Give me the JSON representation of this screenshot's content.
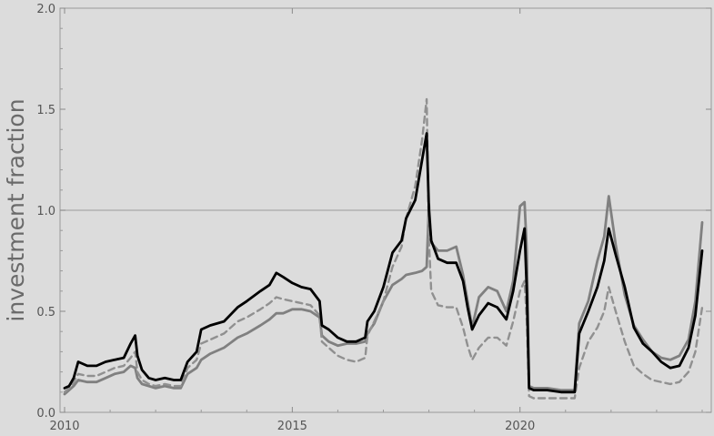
{
  "chart_data": {
    "type": "line",
    "title": "",
    "xlabel": "",
    "ylabel": "investment fraction",
    "xlim": [
      2009.9,
      2024.2
    ],
    "ylim": [
      0.0,
      2.0
    ],
    "xticks": [
      2010,
      2015,
      2020
    ],
    "xtick_labels": [
      "2010",
      "2015",
      "2020"
    ],
    "yticks": [
      0.0,
      0.5,
      1.0,
      1.5,
      2.0
    ],
    "ytick_labels": [
      "0.0",
      "0.5",
      "1.0",
      "1.5",
      "2.0"
    ],
    "reference_line": {
      "y": 1.0,
      "color": "#a8a8a8"
    },
    "grid": false,
    "legend": "none",
    "series": [
      {
        "style": "solid",
        "color": "#000000",
        "x": [
          2010.0,
          2010.1,
          2010.2,
          2010.3,
          2010.5,
          2010.7,
          2010.9,
          2011.1,
          2011.3,
          2011.45,
          2011.55,
          2011.6,
          2011.7,
          2011.85,
          2012.0,
          2012.2,
          2012.4,
          2012.55,
          2012.7,
          2012.9,
          2013.0,
          2013.2,
          2013.5,
          2013.8,
          2014.0,
          2014.3,
          2014.5,
          2014.65,
          2014.8,
          2015.0,
          2015.2,
          2015.4,
          2015.6,
          2015.65,
          2015.8,
          2016.0,
          2016.2,
          2016.4,
          2016.6,
          2016.65,
          2016.8,
          2017.0,
          2017.2,
          2017.4,
          2017.5,
          2017.7,
          2017.85,
          2017.95,
          2018.0,
          2018.05,
          2018.2,
          2018.4,
          2018.6,
          2018.75,
          2018.85,
          2018.95,
          2019.1,
          2019.3,
          2019.5,
          2019.7,
          2019.85,
          2020.0,
          2020.1,
          2020.15,
          2020.2,
          2020.3,
          2020.6,
          2020.9,
          2021.2,
          2021.3,
          2021.5,
          2021.7,
          2021.85,
          2021.95,
          2022.1,
          2022.3,
          2022.5,
          2022.7,
          2022.9,
          2023.1,
          2023.3,
          2023.5,
          2023.7,
          2023.85,
          2024.0
        ],
        "values": [
          0.12,
          0.13,
          0.17,
          0.25,
          0.23,
          0.23,
          0.25,
          0.26,
          0.27,
          0.34,
          0.38,
          0.28,
          0.21,
          0.17,
          0.16,
          0.17,
          0.16,
          0.16,
          0.25,
          0.3,
          0.41,
          0.43,
          0.45,
          0.52,
          0.55,
          0.6,
          0.63,
          0.69,
          0.67,
          0.64,
          0.62,
          0.61,
          0.55,
          0.43,
          0.41,
          0.37,
          0.35,
          0.35,
          0.37,
          0.45,
          0.5,
          0.62,
          0.79,
          0.85,
          0.96,
          1.05,
          1.25,
          1.38,
          1.0,
          0.85,
          0.76,
          0.74,
          0.74,
          0.65,
          0.52,
          0.41,
          0.48,
          0.54,
          0.52,
          0.46,
          0.6,
          0.8,
          0.91,
          0.6,
          0.12,
          0.11,
          0.11,
          0.1,
          0.1,
          0.39,
          0.5,
          0.62,
          0.75,
          0.91,
          0.78,
          0.62,
          0.42,
          0.34,
          0.3,
          0.25,
          0.22,
          0.23,
          0.32,
          0.48,
          0.8
        ]
      },
      {
        "style": "solid",
        "color": "#808080",
        "x": [
          2010.0,
          2010.1,
          2010.2,
          2010.3,
          2010.5,
          2010.7,
          2010.9,
          2011.1,
          2011.3,
          2011.45,
          2011.55,
          2011.6,
          2011.7,
          2011.85,
          2012.0,
          2012.2,
          2012.4,
          2012.55,
          2012.7,
          2012.9,
          2013.0,
          2013.2,
          2013.5,
          2013.8,
          2014.0,
          2014.3,
          2014.5,
          2014.65,
          2014.8,
          2015.0,
          2015.2,
          2015.4,
          2015.6,
          2015.65,
          2015.8,
          2016.0,
          2016.2,
          2016.4,
          2016.6,
          2016.65,
          2016.8,
          2017.0,
          2017.2,
          2017.4,
          2017.5,
          2017.7,
          2017.85,
          2017.95,
          2018.0,
          2018.05,
          2018.2,
          2018.4,
          2018.6,
          2018.75,
          2018.85,
          2018.95,
          2019.1,
          2019.3,
          2019.5,
          2019.7,
          2019.85,
          2020.0,
          2020.1,
          2020.15,
          2020.2,
          2020.3,
          2020.6,
          2020.9,
          2021.2,
          2021.3,
          2021.5,
          2021.7,
          2021.85,
          2021.95,
          2022.1,
          2022.3,
          2022.5,
          2022.7,
          2022.9,
          2023.1,
          2023.3,
          2023.5,
          2023.7,
          2023.85,
          2024.0
        ],
        "values": [
          0.09,
          0.11,
          0.13,
          0.16,
          0.15,
          0.15,
          0.17,
          0.19,
          0.2,
          0.23,
          0.22,
          0.17,
          0.14,
          0.13,
          0.12,
          0.13,
          0.12,
          0.12,
          0.19,
          0.22,
          0.26,
          0.29,
          0.32,
          0.37,
          0.39,
          0.43,
          0.46,
          0.49,
          0.49,
          0.51,
          0.51,
          0.5,
          0.47,
          0.38,
          0.35,
          0.33,
          0.34,
          0.34,
          0.35,
          0.39,
          0.44,
          0.55,
          0.63,
          0.66,
          0.68,
          0.69,
          0.7,
          0.72,
          1.03,
          0.84,
          0.8,
          0.8,
          0.82,
          0.68,
          0.55,
          0.42,
          0.57,
          0.62,
          0.6,
          0.5,
          0.65,
          1.02,
          1.04,
          0.8,
          0.13,
          0.12,
          0.12,
          0.11,
          0.11,
          0.44,
          0.55,
          0.75,
          0.87,
          1.07,
          0.83,
          0.58,
          0.43,
          0.36,
          0.3,
          0.27,
          0.26,
          0.28,
          0.36,
          0.55,
          0.94
        ]
      },
      {
        "style": "dashed",
        "color": "#909090",
        "x": [
          2010.0,
          2010.1,
          2010.2,
          2010.3,
          2010.5,
          2010.7,
          2010.9,
          2011.1,
          2011.3,
          2011.45,
          2011.55,
          2011.6,
          2011.7,
          2011.85,
          2012.0,
          2012.2,
          2012.4,
          2012.55,
          2012.7,
          2012.9,
          2013.0,
          2013.2,
          2013.5,
          2013.8,
          2014.0,
          2014.3,
          2014.5,
          2014.65,
          2014.8,
          2015.0,
          2015.2,
          2015.4,
          2015.6,
          2015.65,
          2015.8,
          2016.0,
          2016.2,
          2016.4,
          2016.6,
          2016.65,
          2016.8,
          2017.0,
          2017.2,
          2017.4,
          2017.5,
          2017.7,
          2017.85,
          2017.95,
          2018.0,
          2018.05,
          2018.2,
          2018.4,
          2018.6,
          2018.75,
          2018.85,
          2018.95,
          2019.1,
          2019.3,
          2019.5,
          2019.7,
          2019.85,
          2020.0,
          2020.1,
          2020.15,
          2020.2,
          2020.3,
          2020.6,
          2020.9,
          2021.2,
          2021.3,
          2021.5,
          2021.7,
          2021.85,
          2021.95,
          2022.1,
          2022.3,
          2022.5,
          2022.7,
          2022.9,
          2023.1,
          2023.3,
          2023.5,
          2023.7,
          2023.85,
          2024.0
        ],
        "values": [
          0.1,
          0.12,
          0.15,
          0.19,
          0.18,
          0.18,
          0.2,
          0.22,
          0.23,
          0.27,
          0.3,
          0.2,
          0.16,
          0.14,
          0.13,
          0.14,
          0.13,
          0.13,
          0.22,
          0.26,
          0.34,
          0.36,
          0.39,
          0.45,
          0.47,
          0.51,
          0.54,
          0.57,
          0.56,
          0.55,
          0.54,
          0.53,
          0.48,
          0.35,
          0.32,
          0.28,
          0.26,
          0.25,
          0.27,
          0.38,
          0.45,
          0.55,
          0.72,
          0.82,
          0.96,
          1.12,
          1.35,
          1.55,
          0.85,
          0.6,
          0.53,
          0.52,
          0.52,
          0.42,
          0.33,
          0.26,
          0.32,
          0.37,
          0.37,
          0.33,
          0.45,
          0.6,
          0.65,
          0.45,
          0.08,
          0.07,
          0.07,
          0.07,
          0.07,
          0.22,
          0.35,
          0.42,
          0.5,
          0.62,
          0.5,
          0.35,
          0.23,
          0.19,
          0.16,
          0.15,
          0.14,
          0.15,
          0.2,
          0.3,
          0.52
        ]
      }
    ]
  }
}
